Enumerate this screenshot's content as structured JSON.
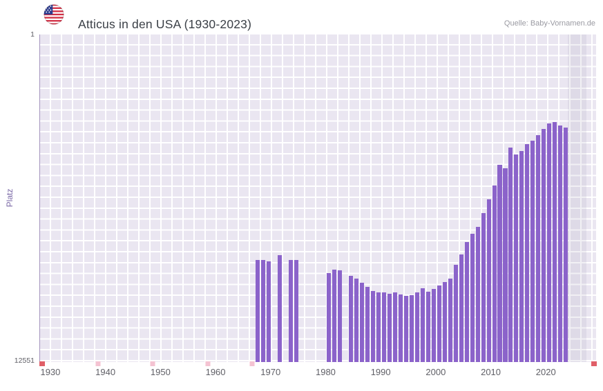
{
  "header": {
    "title": "Atticus in den USA (1930-2023)",
    "source": "Quelle: Baby-Vornamen.de",
    "flag_icon": "us-flag-icon"
  },
  "y_axis": {
    "label": "Platz",
    "top_tick": "1",
    "bottom_tick": "12551"
  },
  "x_axis": {
    "ticks": [
      "1930",
      "1940",
      "1950",
      "1960",
      "1970",
      "1980",
      "1990",
      "2000",
      "2010",
      "2020"
    ]
  },
  "chart_data": {
    "type": "bar",
    "title": "Atticus in den USA (1930-2023)",
    "xlabel": "",
    "ylabel": "Platz",
    "y_inverted": true,
    "ylim": [
      1,
      12551
    ],
    "xlim": [
      1928,
      2029
    ],
    "grid": true,
    "colors": {
      "bar": "#8b63ca",
      "plot_background": "#eae6f1",
      "grid_line": "#ffffff",
      "no_data_marker": "#f4c3d2",
      "axis_end_cap": "#e05f68"
    },
    "points": [
      {
        "year": 1967,
        "rank": 8650
      },
      {
        "year": 1968,
        "rank": 8650
      },
      {
        "year": 1969,
        "rank": 8690
      },
      {
        "year": 1971,
        "rank": 8450
      },
      {
        "year": 1973,
        "rank": 8640
      },
      {
        "year": 1974,
        "rank": 8640
      },
      {
        "year": 1980,
        "rank": 9150
      },
      {
        "year": 1981,
        "rank": 9010
      },
      {
        "year": 1982,
        "rank": 9040
      },
      {
        "year": 1984,
        "rank": 9250
      },
      {
        "year": 1985,
        "rank": 9360
      },
      {
        "year": 1986,
        "rank": 9510
      },
      {
        "year": 1987,
        "rank": 9670
      },
      {
        "year": 1988,
        "rank": 9830
      },
      {
        "year": 1989,
        "rank": 9880
      },
      {
        "year": 1990,
        "rank": 9880
      },
      {
        "year": 1991,
        "rank": 9930
      },
      {
        "year": 1992,
        "rank": 9880
      },
      {
        "year": 1993,
        "rank": 9960
      },
      {
        "year": 1994,
        "rank": 10010
      },
      {
        "year": 1995,
        "rank": 9990
      },
      {
        "year": 1996,
        "rank": 9880
      },
      {
        "year": 1997,
        "rank": 9720
      },
      {
        "year": 1998,
        "rank": 9850
      },
      {
        "year": 1999,
        "rank": 9750
      },
      {
        "year": 2000,
        "rank": 9620
      },
      {
        "year": 2001,
        "rank": 9490
      },
      {
        "year": 2002,
        "rank": 9360
      },
      {
        "year": 2003,
        "rank": 8830
      },
      {
        "year": 2004,
        "rank": 8430
      },
      {
        "year": 2005,
        "rank": 7960
      },
      {
        "year": 2006,
        "rank": 7640
      },
      {
        "year": 2007,
        "rank": 7370
      },
      {
        "year": 2008,
        "rank": 6850
      },
      {
        "year": 2009,
        "rank": 6320
      },
      {
        "year": 2010,
        "rank": 5790
      },
      {
        "year": 2011,
        "rank": 5000
      },
      {
        "year": 2012,
        "rank": 5130
      },
      {
        "year": 2013,
        "rank": 4340
      },
      {
        "year": 2014,
        "rank": 4600
      },
      {
        "year": 2015,
        "rank": 4470
      },
      {
        "year": 2016,
        "rank": 4200
      },
      {
        "year": 2017,
        "rank": 4070
      },
      {
        "year": 2018,
        "rank": 3860
      },
      {
        "year": 2019,
        "rank": 3620
      },
      {
        "year": 2020,
        "rank": 3410
      },
      {
        "year": 2021,
        "rank": 3360
      },
      {
        "year": 2022,
        "rank": 3490
      },
      {
        "year": 2023,
        "rank": 3570
      }
    ],
    "no_data_markers": {
      "years": [
        1938,
        1948,
        1958,
        1966
      ]
    }
  }
}
